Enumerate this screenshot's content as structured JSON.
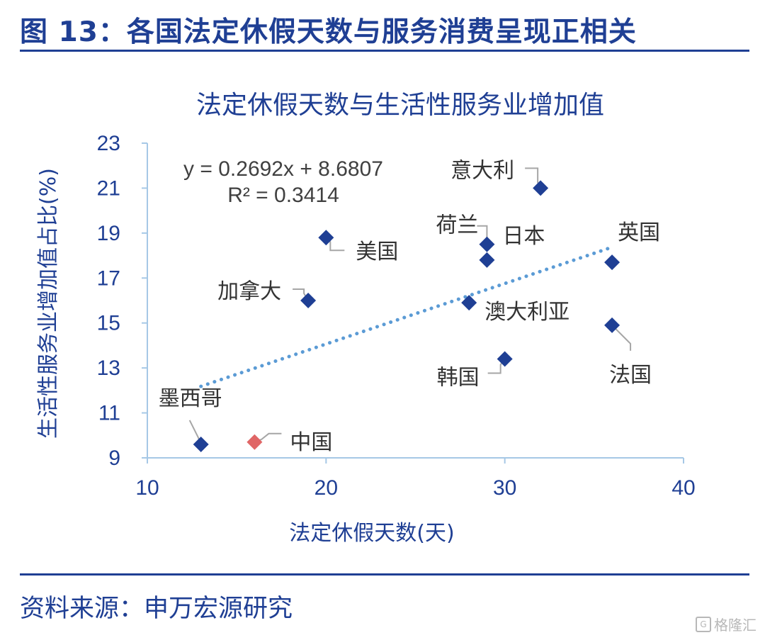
{
  "figure": {
    "title": "图 13：各国法定休假天数与服务消费呈现正相关",
    "source": "资料来源：申万宏源研究",
    "watermark": "格隆汇"
  },
  "colors": {
    "navy": "#1f3f94",
    "marker": "#1f3f94",
    "highlight": "#e06666",
    "trend": "#5b9bd5",
    "leader": "#a6a6a6",
    "axis": "#a6c8e6"
  },
  "chart_data": {
    "type": "scatter",
    "title": "法定休假天数与生活性服务业增加值",
    "xlabel": "法定休假天数(天)",
    "ylabel": "生活性服务业增加值占比(%)",
    "xlim": [
      10,
      40
    ],
    "ylim": [
      9,
      23
    ],
    "xticks": [
      10,
      20,
      30,
      40
    ],
    "yticks": [
      9,
      11,
      13,
      15,
      17,
      19,
      21,
      23
    ],
    "points": [
      {
        "label": "墨西哥",
        "x": 13,
        "y": 9.6
      },
      {
        "label": "中国",
        "x": 16,
        "y": 9.7,
        "highlight": true
      },
      {
        "label": "加拿大",
        "x": 19,
        "y": 16.0
      },
      {
        "label": "美国",
        "x": 20,
        "y": 18.8
      },
      {
        "label": "澳大利亚",
        "x": 28,
        "y": 15.9
      },
      {
        "label": "荷兰",
        "x": 29,
        "y": 18.5
      },
      {
        "label": "日本",
        "x": 29,
        "y": 17.8
      },
      {
        "label": "韩国",
        "x": 30,
        "y": 13.4
      },
      {
        "label": "意大利",
        "x": 32,
        "y": 21.0
      },
      {
        "label": "英国",
        "x": 36,
        "y": 17.7
      },
      {
        "label": "法国",
        "x": 36,
        "y": 14.9
      }
    ],
    "trendline": {
      "type": "linear",
      "slope": 0.2692,
      "intercept": 8.6807,
      "x_range": [
        13,
        36
      ],
      "equation": "y = 0.2692x + 8.6807",
      "r_squared": "R² = 0.3414"
    }
  }
}
